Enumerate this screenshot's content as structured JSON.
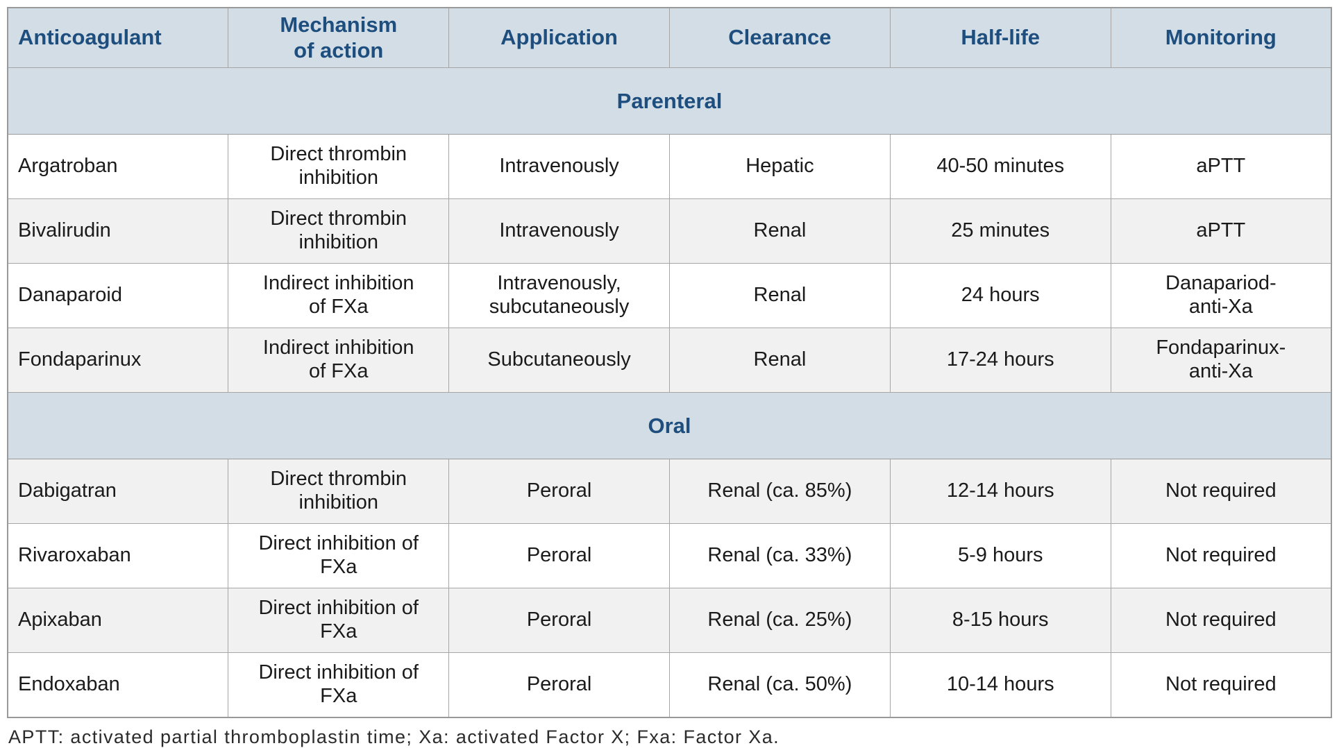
{
  "colors": {
    "header_bg": "#d3dde6",
    "header_text": "#1d4e7e",
    "row_alt_bg": "#f1f1f1",
    "row_bg": "#ffffff",
    "border": "#a6a6a6",
    "body_text": "#1a1a1a"
  },
  "table": {
    "columns": [
      "Anticoagulant",
      "Mechanism\nof action",
      "Application",
      "Clearance",
      "Half-life",
      "Monitoring"
    ],
    "sections": [
      {
        "label": "Parenteral",
        "rows": [
          {
            "anticoagulant": "Argatroban",
            "mechanism": "Direct thrombin\ninhibition",
            "application": "Intravenously",
            "clearance": "Hepatic",
            "half_life": "40-50 minutes",
            "monitoring": "aPTT"
          },
          {
            "anticoagulant": "Bivalirudin",
            "mechanism": "Direct thrombin\ninhibition",
            "application": "Intravenously",
            "clearance": "Renal",
            "half_life": "25 minutes",
            "monitoring": "aPTT"
          },
          {
            "anticoagulant": "Danaparoid",
            "mechanism": "Indirect inhibition\nof FXa",
            "application": "Intravenously,\nsubcutaneously",
            "clearance": "Renal",
            "half_life": "24 hours",
            "monitoring": "Danapariod-\nanti-Xa"
          },
          {
            "anticoagulant": "Fondaparinux",
            "mechanism": "Indirect inhibition\nof FXa",
            "application": "Subcutaneously",
            "clearance": "Renal",
            "half_life": "17-24 hours",
            "monitoring": "Fondaparinux-\nanti-Xa"
          }
        ]
      },
      {
        "label": "Oral",
        "rows": [
          {
            "anticoagulant": "Dabigatran",
            "mechanism": "Direct thrombin\ninhibition",
            "application": "Peroral",
            "clearance": "Renal (ca. 85%)",
            "half_life": "12-14 hours",
            "monitoring": "Not required"
          },
          {
            "anticoagulant": "Rivaroxaban",
            "mechanism": "Direct inhibition of\nFXa",
            "application": "Peroral",
            "clearance": "Renal (ca. 33%)",
            "half_life": "5-9 hours",
            "monitoring": "Not required"
          },
          {
            "anticoagulant": "Apixaban",
            "mechanism": "Direct inhibition of\nFXa",
            "application": "Peroral",
            "clearance": "Renal (ca. 25%)",
            "half_life": "8-15 hours",
            "monitoring": "Not required"
          },
          {
            "anticoagulant": "Endoxaban",
            "mechanism": "Direct inhibition of\nFXa",
            "application": "Peroral",
            "clearance": "Renal (ca. 50%)",
            "half_life": "10-14 hours",
            "monitoring": "Not required"
          }
        ]
      }
    ]
  },
  "footnote": "APTT: activated partial thromboplastin time; Xa: activated Factor X; Fxa: Factor Xa."
}
